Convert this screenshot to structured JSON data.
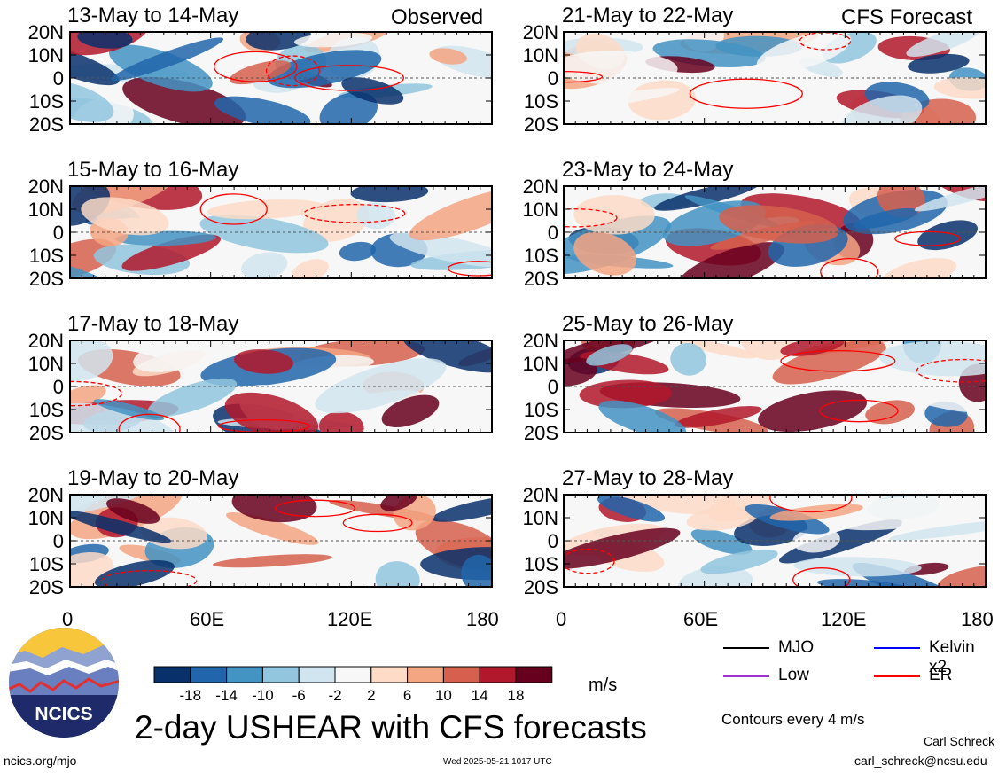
{
  "tags": {
    "left": "Observed",
    "right": "CFS Forecast"
  },
  "panel_titles": {
    "left": [
      "13-May to 14-May",
      "15-May to 16-May",
      "17-May to 18-May",
      "19-May to 20-May"
    ],
    "right": [
      "21-May to 22-May",
      "23-May to 24-May",
      "25-May to 26-May",
      "27-May to 28-May"
    ]
  },
  "chart_data": {
    "type": "heatmap",
    "title": "2-day USHEAR with CFS forecasts",
    "variable": "USHEAR",
    "units": "m/s",
    "contour_note": "Contours every 4 m/s",
    "x_ticks": [
      "0",
      "60E",
      "120E",
      "180"
    ],
    "y_ticks": [
      "20N",
      "10N",
      "0",
      "10S",
      "20S"
    ],
    "xlim": [
      0,
      180
    ],
    "ylim": [
      -20,
      20
    ],
    "colorbar": {
      "labels": [
        "-18",
        "-14",
        "-10",
        "-6",
        "-2",
        "2",
        "6",
        "10",
        "14",
        "18"
      ],
      "colors": [
        "#08306b",
        "#2166ac",
        "#4393c3",
        "#92c5de",
        "#d1e5f0",
        "#f7f7f7",
        "#fddbc7",
        "#f4a582",
        "#d6604d",
        "#b2182b",
        "#67001f"
      ]
    },
    "legend": [
      {
        "label": "MJO",
        "color": "#000000"
      },
      {
        "label": "Kelvin x2",
        "color": "#0000ff"
      },
      {
        "label": "Low",
        "color": "#9933cc"
      },
      {
        "label": "ER",
        "color": "#ff0000"
      }
    ]
  },
  "branding": {
    "logo_text": "NCICS"
  },
  "footer": {
    "url": "ncics.org/mjo",
    "timestamp": "Wed 2025-05-21 1017 UTC",
    "author": "Carl Schreck",
    "email": "carl_schreck@ncsu.edu"
  }
}
